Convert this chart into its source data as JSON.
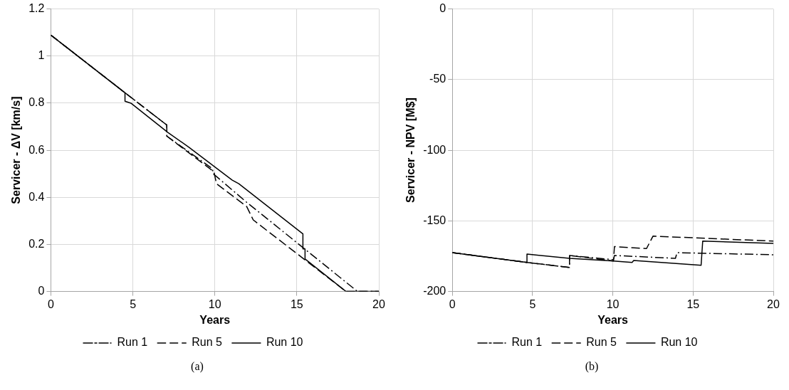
{
  "chart_data": [
    {
      "type": "line",
      "xlabel": "Years",
      "ylabel": "Servicer - ΔV [km/s]",
      "annotations": [
        "(a)"
      ],
      "xlim": [
        0,
        20
      ],
      "xticks": [
        0,
        5,
        10,
        15,
        20
      ],
      "ylim": [
        0,
        1.2
      ],
      "yticks": [
        0,
        0.2,
        0.4,
        0.6,
        0.8,
        1,
        1.2
      ],
      "grid": true,
      "legend": "bottom",
      "marker": "none",
      "series": [
        {
          "name": "Run 1",
          "color": "#000000",
          "line_style": "dashdot",
          "x": [
            0,
            4.52,
            7.07,
            7.07,
            9.86,
            9.9,
            11.94,
            18.7,
            20
          ],
          "values": [
            1.089,
            0.844,
            0.707,
            0.66,
            0.521,
            0.5,
            0.379,
            0,
            0
          ]
        },
        {
          "name": "Run 5",
          "color": "#000000",
          "line_style": "dashed",
          "x": [
            0,
            4.52,
            7.07,
            7.07,
            9.94,
            10.1,
            11.94,
            12.34,
            18.0,
            20
          ],
          "values": [
            1.089,
            0.844,
            0.707,
            0.66,
            0.509,
            0.458,
            0.361,
            0.304,
            0,
            0
          ]
        },
        {
          "name": "Run 10",
          "color": "#000000",
          "line_style": "solid",
          "x": [
            0,
            4.52,
            4.52,
            4.88,
            7.15,
            8.43,
            11.06,
            11.46,
            15.37,
            15.37,
            15.5,
            15.5,
            18.0,
            20
          ],
          "values": [
            1.089,
            0.844,
            0.808,
            0.8,
            0.675,
            0.612,
            0.473,
            0.458,
            0.245,
            0.181,
            0.181,
            0.138,
            0,
            0
          ]
        }
      ]
    },
    {
      "type": "line",
      "xlabel": "Years",
      "ylabel": "Servicer - NPV [M$]",
      "annotations": [
        "(b)"
      ],
      "xlim": [
        0,
        20
      ],
      "xticks": [
        0,
        5,
        10,
        15,
        20
      ],
      "ylim": [
        -200,
        0
      ],
      "yticks": [
        -200,
        -150,
        -100,
        -50,
        0
      ],
      "grid": true,
      "legend": "bottom",
      "marker": "none",
      "series": [
        {
          "name": "Run 1",
          "color": "#000000",
          "line_style": "dashdot",
          "x": [
            0,
            4.65,
            7.3,
            7.3,
            10.04,
            10.1,
            13.9,
            14.0,
            20
          ],
          "values": [
            -172.5,
            -179.4,
            -183,
            -174.5,
            -177.5,
            -174.5,
            -176.5,
            -172.5,
            -174
          ]
        },
        {
          "name": "Run 5",
          "color": "#000000",
          "line_style": "dashed",
          "x": [
            0,
            4.65,
            7.3,
            7.3,
            10.04,
            10.1,
            12.1,
            12.5,
            20
          ],
          "values": [
            -172.5,
            -179.4,
            -183,
            -174.5,
            -178.4,
            -168.2,
            -169.6,
            -160.8,
            -164.3
          ]
        },
        {
          "name": "Run 10",
          "color": "#000000",
          "line_style": "solid",
          "x": [
            0,
            4.65,
            4.65,
            7.3,
            10.04,
            11.2,
            11.3,
            15.5,
            15.6,
            20
          ],
          "values": [
            -172.5,
            -179.4,
            -173.5,
            -176.5,
            -178.4,
            -179.4,
            -178,
            -181.4,
            -164.3,
            -166
          ]
        }
      ]
    }
  ]
}
